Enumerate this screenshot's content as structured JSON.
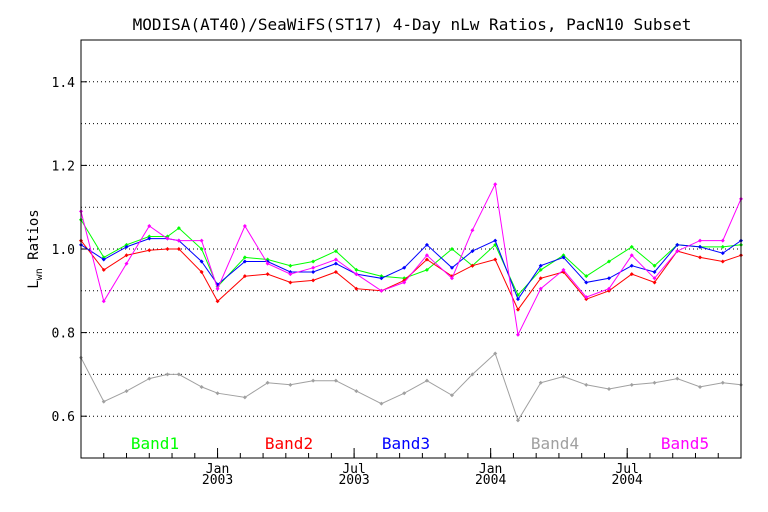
{
  "chart_data": {
    "type": "line",
    "title": "MODISA(AT40)/SeaWiFS(ST17) 4-Day nLw Ratios, PacN10 Subset",
    "ylabel": "Lwn Ratios",
    "ylabel_main": "L",
    "ylabel_sub": "wn",
    "ylabel_rest": " Ratios",
    "xlabel": "",
    "ylim": [
      0.5,
      1.5
    ],
    "xlim_months": [
      0,
      29
    ],
    "yticks": [
      {
        "value": 0.6,
        "label": "0.6"
      },
      {
        "value": 0.8,
        "label": "0.8"
      },
      {
        "value": 1.0,
        "label": "1.0"
      },
      {
        "value": 1.2,
        "label": "1.2"
      },
      {
        "value": 1.4,
        "label": "1.4"
      }
    ],
    "ygrid": [
      0.6,
      0.7,
      0.8,
      0.9,
      1.0,
      1.1,
      1.2,
      1.3,
      1.4
    ],
    "xticks": [
      {
        "month": 6,
        "label1": "Jan",
        "label2": "2003"
      },
      {
        "month": 12,
        "label1": "Jul",
        "label2": "2003"
      },
      {
        "month": 18,
        "label1": "Jan",
        "label2": "2004"
      },
      {
        "month": 24,
        "label1": "Jul",
        "label2": "2004"
      }
    ],
    "grid": "horizontal dotted",
    "legend_position": "bottom",
    "x": [
      0.0,
      1.0,
      2.0,
      3.0,
      3.8,
      4.3,
      5.3,
      6.0,
      7.2,
      8.2,
      9.2,
      10.2,
      11.2,
      12.1,
      13.2,
      14.2,
      15.2,
      16.3,
      17.2,
      18.2,
      19.2,
      20.2,
      21.2,
      22.2,
      23.2,
      24.2,
      25.2,
      26.2,
      27.2,
      28.2,
      29.0
    ],
    "series": [
      {
        "name": "Band1",
        "color": "#00ff00",
        "values": [
          1.07,
          0.98,
          1.01,
          1.03,
          1.03,
          1.05,
          1.0,
          0.91,
          0.98,
          0.975,
          0.96,
          0.97,
          0.995,
          0.95,
          0.935,
          0.93,
          0.95,
          1.0,
          0.96,
          1.01,
          0.89,
          0.95,
          0.985,
          0.935,
          0.97,
          1.005,
          0.96,
          1.01,
          1.005,
          1.005,
          1.01
        ]
      },
      {
        "name": "Band2",
        "color": "#ff0000",
        "values": [
          1.02,
          0.95,
          0.985,
          0.997,
          1.0,
          1.0,
          0.945,
          0.875,
          0.935,
          0.94,
          0.92,
          0.925,
          0.945,
          0.905,
          0.9,
          0.925,
          0.975,
          0.935,
          0.96,
          0.975,
          0.855,
          0.93,
          0.945,
          0.88,
          0.9,
          0.94,
          0.92,
          0.995,
          0.98,
          0.97,
          0.985
        ]
      },
      {
        "name": "Band3",
        "color": "#0000ff",
        "values": [
          1.01,
          0.975,
          1.005,
          1.025,
          1.025,
          1.02,
          0.97,
          0.915,
          0.97,
          0.97,
          0.945,
          0.945,
          0.965,
          0.94,
          0.93,
          0.955,
          1.01,
          0.955,
          0.995,
          1.02,
          0.88,
          0.96,
          0.98,
          0.92,
          0.93,
          0.96,
          0.945,
          1.01,
          1.005,
          0.99,
          1.02
        ]
      },
      {
        "name": "Band4",
        "color": "#a0a0a0",
        "values": [
          0.74,
          0.635,
          0.66,
          0.69,
          0.7,
          0.7,
          0.67,
          0.655,
          0.645,
          0.68,
          0.675,
          0.685,
          0.685,
          0.66,
          0.63,
          0.655,
          0.685,
          0.65,
          0.7,
          0.75,
          0.59,
          0.68,
          0.695,
          0.675,
          0.665,
          0.675,
          0.68,
          0.69,
          0.67,
          0.68,
          0.675
        ]
      },
      {
        "name": "Band5",
        "color": "#ff00ff",
        "values": [
          1.09,
          0.875,
          0.965,
          1.055,
          1.025,
          1.02,
          1.02,
          0.905,
          1.055,
          0.965,
          0.94,
          0.955,
          0.975,
          0.94,
          0.9,
          0.92,
          0.985,
          0.93,
          1.045,
          1.155,
          0.795,
          0.905,
          0.95,
          0.885,
          0.905,
          0.985,
          0.93,
          0.995,
          1.02,
          1.02,
          1.12
        ]
      }
    ]
  }
}
